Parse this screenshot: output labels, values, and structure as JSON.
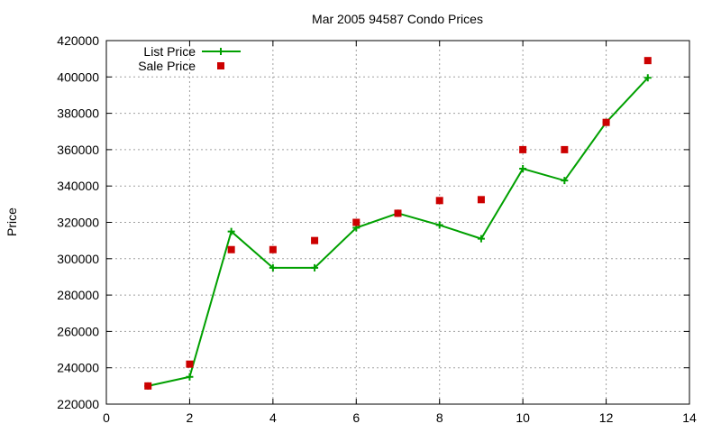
{
  "chart_data": {
    "type": "line",
    "title": "Mar 2005 94587 Condo Prices",
    "xlabel": "",
    "ylabel": "Price",
    "xlim": [
      0,
      14
    ],
    "ylim": [
      220000,
      420000
    ],
    "xticks": [
      0,
      2,
      4,
      6,
      8,
      10,
      12,
      14
    ],
    "yticks": [
      220000,
      240000,
      260000,
      280000,
      300000,
      320000,
      340000,
      360000,
      380000,
      400000,
      420000
    ],
    "grid": true,
    "legend_position": "top-left",
    "series": [
      {
        "name": "List Price",
        "style": "line-with-plus-markers",
        "color": "#00a000",
        "x": [
          1,
          2,
          3,
          4,
          5,
          6,
          7,
          8,
          9,
          10,
          11,
          12,
          13
        ],
        "y": [
          230000,
          235000,
          315000,
          295000,
          295000,
          317000,
          325000,
          318500,
          311000,
          349500,
          343000,
          375000,
          399500
        ]
      },
      {
        "name": "Sale Price",
        "style": "square-markers",
        "color": "#cc0000",
        "x": [
          1,
          2,
          3,
          4,
          5,
          6,
          7,
          8,
          9,
          10,
          11,
          12,
          13
        ],
        "y": [
          230000,
          242000,
          305000,
          305000,
          310000,
          320000,
          325000,
          332000,
          332500,
          360000,
          360000,
          375000,
          409000
        ]
      }
    ]
  }
}
